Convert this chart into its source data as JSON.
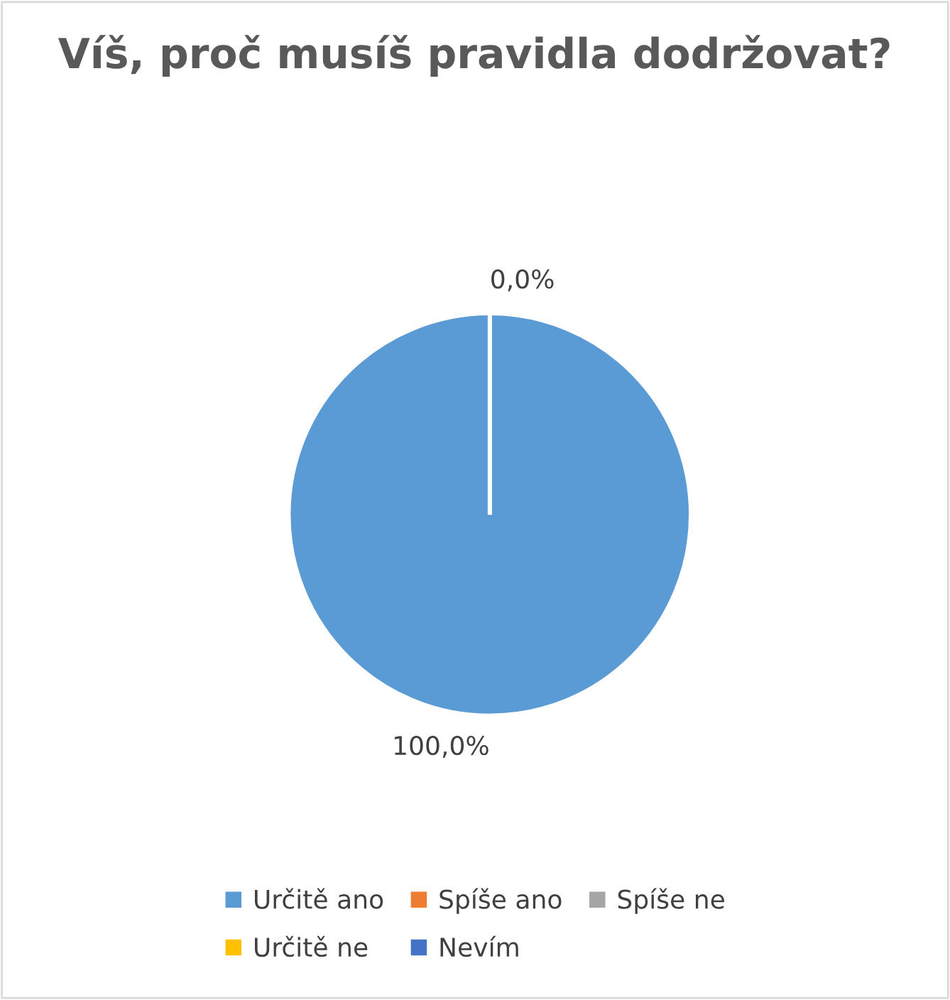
{
  "chart_data": {
    "type": "pie",
    "title": "Víš, proč musíš pravidla dodržovat?",
    "categories": [
      "Určitě ano",
      "Spíše ano",
      "Spíše ne",
      "Určitě ne",
      "Nevím"
    ],
    "values": [
      100,
      0,
      0,
      0,
      0
    ],
    "colors": [
      "#5b9bd5",
      "#ed7d31",
      "#a5a5a5",
      "#ffc000",
      "#4472c4"
    ],
    "value_labels": [
      "100,0%",
      null,
      null,
      null,
      "0,0%"
    ],
    "legend": "bottom"
  }
}
